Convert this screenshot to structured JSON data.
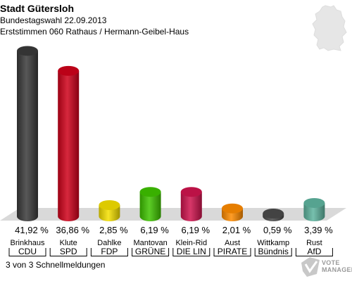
{
  "header": {
    "title": "Stadt Gütersloh",
    "subtitle": "Bundestagswahl 22.09.2013",
    "district": "Erststimmen 060 Rathaus / Hermann-Geibel-Haus"
  },
  "footer": {
    "note": "3 von 3 Schnellmeldungen"
  },
  "logo": {
    "line1": "VOTE",
    "line2": "MANAGER"
  },
  "chart_data": {
    "type": "bar",
    "title": "Stadt Gütersloh",
    "subtitle": "Bundestagswahl 22.09.2013 — Erststimmen 060 Rathaus / Hermann-Geibel-Haus",
    "categories": [
      {
        "candidate": "Brinkhaus",
        "party": "CDU"
      },
      {
        "candidate": "Klute",
        "party": "SPD"
      },
      {
        "candidate": "Dahlke",
        "party": "FDP"
      },
      {
        "candidate": "Mantovan",
        "party": "GRÜNE"
      },
      {
        "candidate": "Klein-Rid",
        "party": "DIE LIN"
      },
      {
        "candidate": "Aust",
        "party": "PIRATE"
      },
      {
        "candidate": "Wittkamp",
        "party": "Bündnis"
      },
      {
        "candidate": "Rust",
        "party": "AfD"
      }
    ],
    "values": [
      41.92,
      36.86,
      2.85,
      6.19,
      6.19,
      2.01,
      0.59,
      3.39
    ],
    "labels": [
      "41,92 %",
      "36,86 %",
      "2,85 %",
      "6,19 %",
      "6,19 %",
      "2,01 %",
      "0,59 %",
      "3,39 %"
    ],
    "colors": [
      "#3a3a3a",
      "#d0021b",
      "#f5e000",
      "#3fc400",
      "#d0144e",
      "#ff8c00",
      "#4a4a4a",
      "#5fb5a0"
    ],
    "ylim": [
      0,
      42
    ],
    "unit": "%"
  }
}
